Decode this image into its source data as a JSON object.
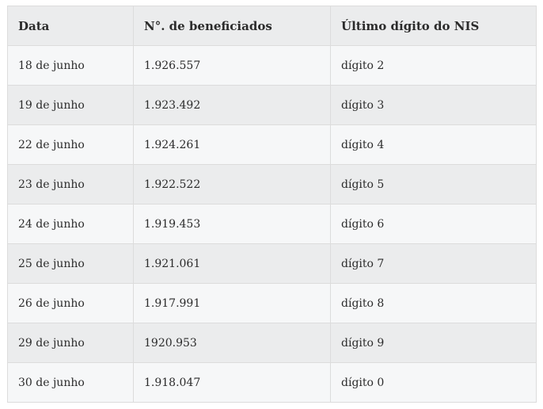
{
  "table": {
    "headers": [
      "Data",
      "N°. de beneficiados",
      "Último dígito do NIS"
    ],
    "rows": [
      [
        "18 de junho",
        "1.926.557",
        "dígito 2"
      ],
      [
        "19 de junho",
        "1.923.492",
        "dígito 3"
      ],
      [
        "22 de junho",
        "1.924.261",
        "dígito 4"
      ],
      [
        "23 de junho",
        "1.922.522",
        "dígito 5"
      ],
      [
        "24 de junho",
        "1.919.453",
        "dígito 6"
      ],
      [
        "25 de junho",
        "1.921.061",
        "dígito 7"
      ],
      [
        "26 de junho",
        "1.917.991",
        "dígito 8"
      ],
      [
        "29 de junho",
        "1920.953",
        "dígito 9"
      ],
      [
        "30 de junho",
        "1.918.047",
        "dígito 0"
      ]
    ]
  }
}
